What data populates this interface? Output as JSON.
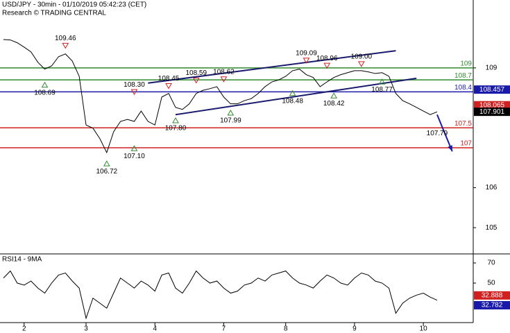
{
  "chart_data": {
    "type": "line",
    "title": "USD/JPY - 30min - 01/10/2019 05:42:23 (CET)",
    "subtitle": "Research © TRADING CENTRAL",
    "categories": [
      null,
      null,
      null,
      "2",
      null,
      null,
      null,
      null,
      null,
      null,
      null,
      null,
      "3",
      null,
      null,
      null,
      null,
      null,
      null,
      null,
      null,
      null,
      "4",
      null,
      null,
      null,
      null,
      null,
      null,
      null,
      null,
      null,
      "7",
      null,
      null,
      null,
      null,
      null,
      null,
      null,
      null,
      "8",
      null,
      null,
      null,
      null,
      null,
      null,
      null,
      null,
      null,
      "9",
      null,
      null,
      null,
      null,
      null,
      null,
      null,
      null,
      null,
      "10",
      null,
      null
    ],
    "values": [
      109.71,
      109.7,
      109.63,
      109.52,
      109.4,
      109.14,
      108.97,
      109.05,
      109.28,
      109.35,
      109.17,
      108.79,
      107.57,
      107.49,
      107.23,
      106.88,
      107.4,
      107.66,
      107.71,
      107.66,
      107.92,
      107.66,
      107.57,
      108.27,
      108.36,
      108.01,
      107.96,
      108.1,
      108.36,
      108.44,
      108.48,
      108.53,
      108.27,
      108.1,
      108.1,
      108.18,
      108.23,
      108.36,
      108.53,
      108.65,
      108.7,
      108.79,
      108.93,
      108.97,
      108.83,
      108.76,
      108.53,
      108.65,
      108.76,
      108.83,
      108.88,
      108.93,
      108.93,
      108.9,
      108.86,
      108.88,
      108.79,
      108.36,
      108.18,
      108.1,
      108.01,
      107.92,
      107.83,
      107.9
    ],
    "color": "#000000",
    "ylim": [
      104.36,
      110.7
    ],
    "yticks": [
      105,
      106,
      109
    ],
    "levels": [
      {
        "value": 109,
        "label": "109",
        "color": "#2e8b2e"
      },
      {
        "value": 108.7,
        "label": "108.7",
        "color": "#2e8b2e"
      },
      {
        "value": 108.4,
        "label": "108.4",
        "color": "#1a1aaa"
      },
      {
        "value": 107.5,
        "label": "107.5",
        "color": "#d02020"
      },
      {
        "value": 107,
        "label": "107",
        "color": "#d02020"
      }
    ],
    "annotations": [
      {
        "index": 9,
        "value": 109.46,
        "label": "109.46",
        "marker": "down"
      },
      {
        "index": 6,
        "value": 108.69,
        "label": "108.69",
        "marker": "up"
      },
      {
        "index": 15,
        "value": 106.72,
        "label": "106.72",
        "marker": "up"
      },
      {
        "index": 19,
        "value": 107.1,
        "label": "107.10",
        "marker": "up"
      },
      {
        "index": 19,
        "value": 108.3,
        "label": "108.30",
        "marker": "down"
      },
      {
        "index": 24,
        "value": 108.45,
        "label": "108.45",
        "marker": "down"
      },
      {
        "index": 25,
        "value": 107.8,
        "label": "107.80",
        "marker": "up"
      },
      {
        "index": 28,
        "value": 108.59,
        "label": "108.59",
        "marker": "down"
      },
      {
        "index": 32,
        "value": 108.62,
        "label": "108.62",
        "marker": "down"
      },
      {
        "index": 33,
        "value": 107.99,
        "label": "107.99",
        "marker": "up"
      },
      {
        "index": 42,
        "value": 108.48,
        "label": "108.48",
        "marker": "up"
      },
      {
        "index": 44,
        "value": 109.09,
        "label": "109.09",
        "marker": "down"
      },
      {
        "index": 47,
        "value": 108.96,
        "label": "108.96",
        "marker": "down"
      },
      {
        "index": 48,
        "value": 108.42,
        "label": "108.42",
        "marker": "up"
      },
      {
        "index": 52,
        "value": 109.0,
        "label": "109.00",
        "marker": "down"
      },
      {
        "index": 55,
        "value": 108.77,
        "label": "108.77",
        "marker": "up"
      },
      {
        "index": 63,
        "value": 107.79,
        "label": "107.79",
        "marker": "none"
      }
    ],
    "trendlines": [
      {
        "from": [
          21,
          108.62
        ],
        "to": [
          57,
          109.43
        ]
      },
      {
        "from": [
          25,
          107.83
        ],
        "to": [
          60,
          108.74
        ]
      }
    ],
    "arrow": {
      "from": [
        63,
        107.83
      ],
      "to": [
        65.2,
        106.91
      ]
    },
    "price_tags": [
      {
        "value": 108.457,
        "label": "108.457",
        "color": "#1a1aaa"
      },
      {
        "value": 108.065,
        "label": "108.065",
        "color": "#d02020"
      },
      {
        "value": 107.901,
        "label": "107.901",
        "color": "#000000"
      }
    ],
    "rsi": {
      "title": "RSI14 - 9MA",
      "ylim": [
        10.7,
        77.6
      ],
      "yticks": [
        50,
        70
      ],
      "values": [
        55,
        62,
        50,
        48,
        52,
        45,
        40,
        50,
        58,
        60,
        52,
        45,
        15,
        35,
        30,
        25,
        40,
        55,
        50,
        45,
        52,
        48,
        42,
        58,
        60,
        45,
        40,
        50,
        62,
        55,
        50,
        52,
        45,
        40,
        42,
        48,
        50,
        55,
        52,
        58,
        60,
        62,
        55,
        50,
        48,
        45,
        52,
        58,
        55,
        50,
        48,
        55,
        60,
        58,
        52,
        50,
        45,
        20,
        30,
        35,
        38,
        40,
        36,
        33
      ],
      "color": "#000000",
      "tags": [
        {
          "value": 32.888,
          "label": "32.888",
          "color": "#d02020"
        },
        {
          "value": 32.782,
          "label": "32.782",
          "color": "#1a1aaa"
        }
      ]
    }
  }
}
